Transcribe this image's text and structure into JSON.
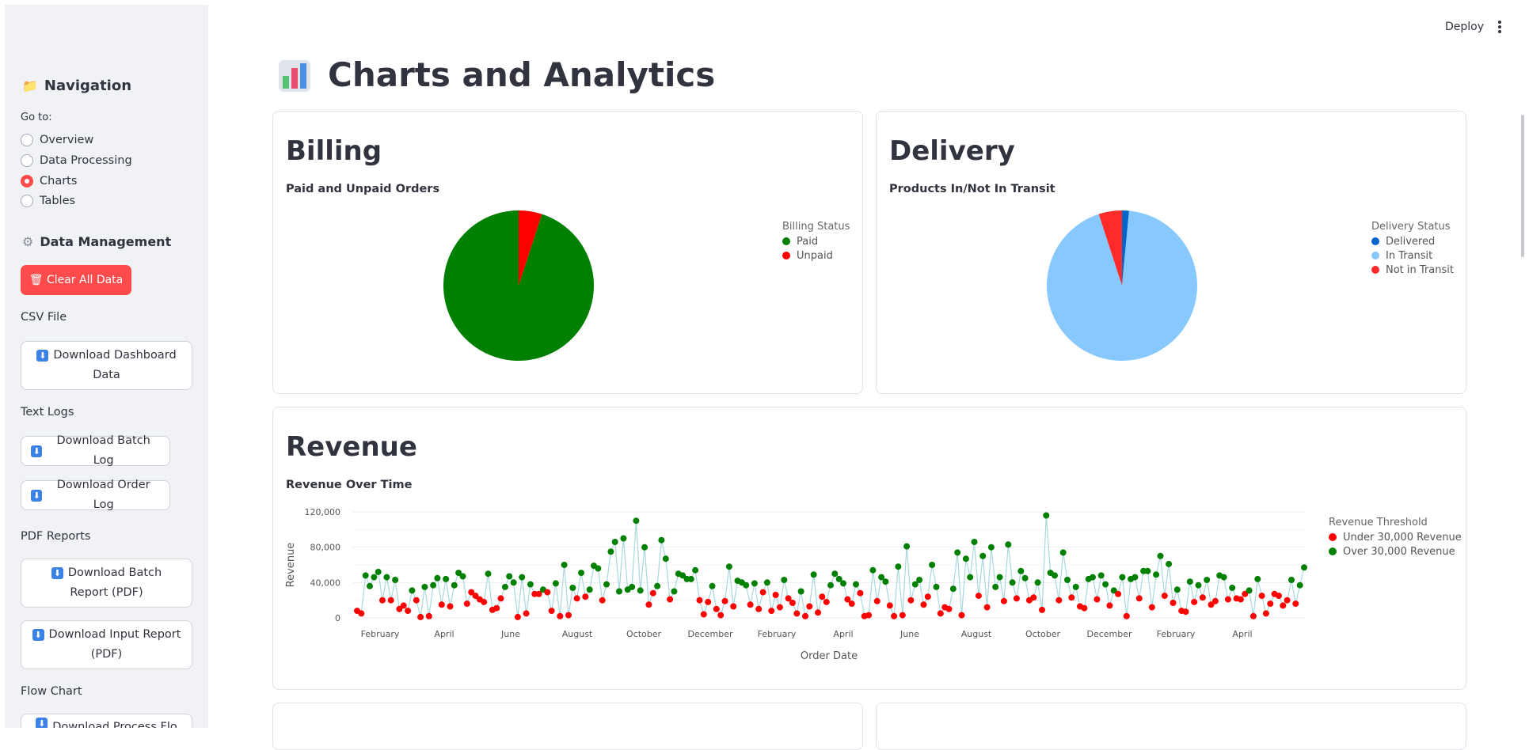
{
  "sidebar": {
    "nav_icon": "folder-icon",
    "nav_title": "Navigation",
    "goto_label": "Go to:",
    "pages": [
      {
        "label": "Overview",
        "selected": false
      },
      {
        "label": "Data Processing",
        "selected": false
      },
      {
        "label": "Charts",
        "selected": true
      },
      {
        "label": "Tables",
        "selected": false
      }
    ],
    "dm_icon": "gear-icon",
    "dm_title": "Data Management",
    "clear_label": "Clear All Data",
    "clear_icon": "wastebasket-icon",
    "csv_label": "CSV File",
    "download_dashboard": "Download Dashboard Data",
    "text_logs_label": "Text Logs",
    "download_batch_log": "Download Batch Log",
    "download_order_log": "Download Order Log",
    "pdf_label": "PDF Reports",
    "download_batch_report": "Download Batch Report (PDF)",
    "download_input_report": "Download Input Report (PDF)",
    "flow_label": "Flow Chart",
    "download_process_flow": "Download Process Flo"
  },
  "topbar": {
    "deploy": "Deploy",
    "menu_icon": "kebab-menu-icon"
  },
  "page_title": "Charts and Analytics",
  "title_icon": "bar-chart-icon",
  "colors": {
    "accent": "#ff4b4b",
    "paid": "#008000",
    "unpaid": "#ff0000",
    "delivered": "#0066cc",
    "in_transit": "#87c8ff",
    "not_in_transit": "#ff2b2b",
    "line": "#a8d8de"
  },
  "billing": {
    "heading": "Billing",
    "chart_data": {
      "type": "pie",
      "title": "Paid and Unpaid Orders",
      "legend_title": "Billing Status",
      "labels": [
        "Paid",
        "Unpaid"
      ],
      "values": [
        95,
        5
      ],
      "colors": [
        "#008000",
        "#ff0000"
      ]
    }
  },
  "delivery": {
    "heading": "Delivery",
    "chart_data": {
      "type": "pie",
      "title": "Products In/Not In Transit",
      "legend_title": "Delivery Status",
      "labels": [
        "Delivered",
        "In Transit",
        "Not in Transit"
      ],
      "values": [
        1.5,
        93.5,
        5
      ],
      "colors": [
        "#0066cc",
        "#87c8ff",
        "#ff2b2b"
      ]
    }
  },
  "revenue": {
    "heading": "Revenue",
    "chart_data": {
      "type": "scatter",
      "title": "Revenue Over Time",
      "xlabel": "Order Date",
      "ylabel": "Revenue",
      "ylim": [
        0,
        120000
      ],
      "y_ticks": [
        "0",
        "40,000",
        "80,000",
        "120,000"
      ],
      "x_ticks": [
        "February",
        "April",
        "June",
        "August",
        "October",
        "December",
        "February",
        "April",
        "June",
        "August",
        "October",
        "December",
        "February",
        "April"
      ],
      "legend_title": "Revenue Threshold",
      "series": [
        {
          "name": "Under 30,000 Revenue",
          "color": "#ff0000"
        },
        {
          "name": "Over 30,000 Revenue",
          "color": "#008000"
        }
      ],
      "points": [
        8000,
        5000,
        48000,
        36000,
        46000,
        52000,
        20000,
        46000,
        20000,
        43000,
        10000,
        14000,
        8000,
        31000,
        20000,
        1000,
        35000,
        2000,
        37000,
        45000,
        15000,
        44000,
        13000,
        37000,
        51000,
        47000,
        16000,
        29000,
        25000,
        21000,
        18000,
        50000,
        9000,
        11000,
        22000,
        35000,
        47000,
        40000,
        1000,
        46000,
        5000,
        38000,
        27000,
        27000,
        32000,
        29000,
        8000,
        39000,
        2000,
        60000,
        3000,
        34000,
        22000,
        51000,
        24000,
        32000,
        59000,
        56000,
        20000,
        38000,
        75000,
        86000,
        30000,
        90000,
        32000,
        35000,
        110000,
        31000,
        80000,
        15000,
        28000,
        36000,
        88000,
        67000,
        21000,
        30000,
        50000,
        48000,
        44000,
        44000,
        54000,
        20000,
        4000,
        18000,
        36000,
        10000,
        3000,
        19000,
        58000,
        13000,
        42000,
        40000,
        37000,
        15000,
        39000,
        10000,
        29000,
        40000,
        8000,
        26000,
        12000,
        43000,
        22000,
        17000,
        5000,
        30000,
        2000,
        13000,
        49000,
        6000,
        24000,
        18000,
        37000,
        50000,
        44000,
        39000,
        21000,
        16000,
        38000,
        28000,
        2000,
        3000,
        54000,
        19000,
        46000,
        41000,
        14000,
        2000,
        58000,
        3000,
        81000,
        20000,
        38000,
        43000,
        15000,
        24000,
        60000,
        35000,
        5000,
        12000,
        10000,
        33000,
        74000,
        3000,
        67000,
        46000,
        86000,
        25000,
        70000,
        12000,
        80000,
        35000,
        46000,
        19000,
        83000,
        40000,
        22000,
        53000,
        45000,
        20000,
        23000,
        40000,
        9000,
        116000,
        51000,
        48000,
        20000,
        74000,
        43000,
        23000,
        35000,
        13000,
        11000,
        44000,
        46000,
        21000,
        48000,
        38000,
        14000,
        31000,
        27000,
        46000,
        2000,
        44000,
        46000,
        22000,
        53000,
        53000,
        12000,
        49000,
        70000,
        25000,
        61000,
        17000,
        32000,
        8000,
        7000,
        41000,
        18000,
        37000,
        23000,
        43000,
        15000,
        19000,
        48000,
        46000,
        21000,
        34000,
        22000,
        21000,
        27000,
        31000,
        2000,
        44000,
        25000,
        5000,
        16000,
        27000,
        25000,
        14000,
        20000,
        43000,
        16000,
        37000,
        57000
      ]
    }
  }
}
